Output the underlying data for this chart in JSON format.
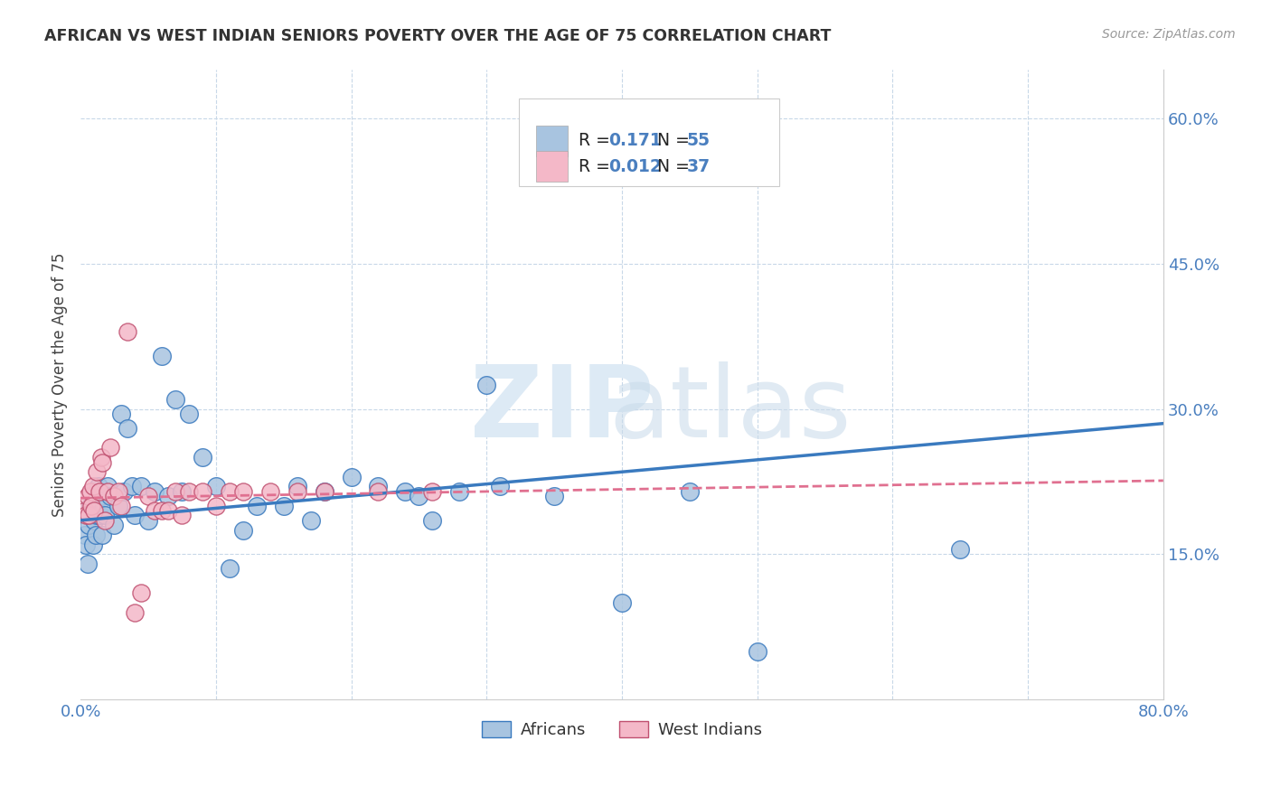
{
  "title": "AFRICAN VS WEST INDIAN SENIORS POVERTY OVER THE AGE OF 75 CORRELATION CHART",
  "source": "Source: ZipAtlas.com",
  "ylabel": "Seniors Poverty Over the Age of 75",
  "xlim": [
    0.0,
    0.8
  ],
  "ylim": [
    0.0,
    0.65
  ],
  "xticks": [
    0.0,
    0.1,
    0.2,
    0.3,
    0.4,
    0.5,
    0.6,
    0.7,
    0.8
  ],
  "ytick_positions": [
    0.15,
    0.3,
    0.45,
    0.6
  ],
  "ytick_labels": [
    "15.0%",
    "30.0%",
    "45.0%",
    "60.0%"
  ],
  "color_african": "#a8c4e0",
  "color_west_indian": "#f4b8c8",
  "color_line_african": "#3a7abf",
  "color_line_west_indian": "#e07090",
  "background_color": "#ffffff",
  "grid_color": "#c8d8e8",
  "africans_x": [
    0.003,
    0.004,
    0.005,
    0.006,
    0.007,
    0.008,
    0.009,
    0.01,
    0.011,
    0.012,
    0.013,
    0.014,
    0.015,
    0.016,
    0.017,
    0.018,
    0.02,
    0.022,
    0.025,
    0.028,
    0.03,
    0.032,
    0.035,
    0.038,
    0.04,
    0.045,
    0.05,
    0.055,
    0.06,
    0.065,
    0.07,
    0.075,
    0.08,
    0.09,
    0.1,
    0.11,
    0.12,
    0.13,
    0.15,
    0.16,
    0.17,
    0.18,
    0.2,
    0.22,
    0.24,
    0.25,
    0.26,
    0.28,
    0.3,
    0.31,
    0.35,
    0.4,
    0.45,
    0.5,
    0.65
  ],
  "africans_y": [
    0.17,
    0.16,
    0.14,
    0.18,
    0.2,
    0.19,
    0.16,
    0.185,
    0.17,
    0.19,
    0.22,
    0.19,
    0.21,
    0.17,
    0.2,
    0.19,
    0.22,
    0.21,
    0.18,
    0.2,
    0.295,
    0.215,
    0.28,
    0.22,
    0.19,
    0.22,
    0.185,
    0.215,
    0.355,
    0.21,
    0.31,
    0.215,
    0.295,
    0.25,
    0.22,
    0.135,
    0.175,
    0.2,
    0.2,
    0.22,
    0.185,
    0.215,
    0.23,
    0.22,
    0.215,
    0.21,
    0.185,
    0.215,
    0.325,
    0.22,
    0.21,
    0.1,
    0.215,
    0.05,
    0.155
  ],
  "west_indians_x": [
    0.003,
    0.004,
    0.005,
    0.006,
    0.007,
    0.008,
    0.009,
    0.01,
    0.012,
    0.014,
    0.015,
    0.016,
    0.018,
    0.02,
    0.022,
    0.025,
    0.028,
    0.03,
    0.035,
    0.04,
    0.045,
    0.05,
    0.055,
    0.06,
    0.065,
    0.07,
    0.075,
    0.08,
    0.09,
    0.1,
    0.11,
    0.12,
    0.14,
    0.16,
    0.18,
    0.22,
    0.26
  ],
  "west_indians_y": [
    0.195,
    0.19,
    0.21,
    0.19,
    0.215,
    0.2,
    0.22,
    0.195,
    0.235,
    0.215,
    0.25,
    0.245,
    0.185,
    0.215,
    0.26,
    0.21,
    0.215,
    0.2,
    0.38,
    0.09,
    0.11,
    0.21,
    0.195,
    0.195,
    0.195,
    0.215,
    0.19,
    0.215,
    0.215,
    0.2,
    0.215,
    0.215,
    0.215,
    0.215,
    0.215,
    0.215,
    0.215
  ],
  "regression_african_x0": 0.0,
  "regression_african_y0": 0.185,
  "regression_african_x1": 0.8,
  "regression_african_y1": 0.285,
  "regression_wi_x0": 0.0,
  "regression_wi_y0": 0.208,
  "regression_wi_x1": 0.8,
  "regression_wi_y1": 0.226
}
